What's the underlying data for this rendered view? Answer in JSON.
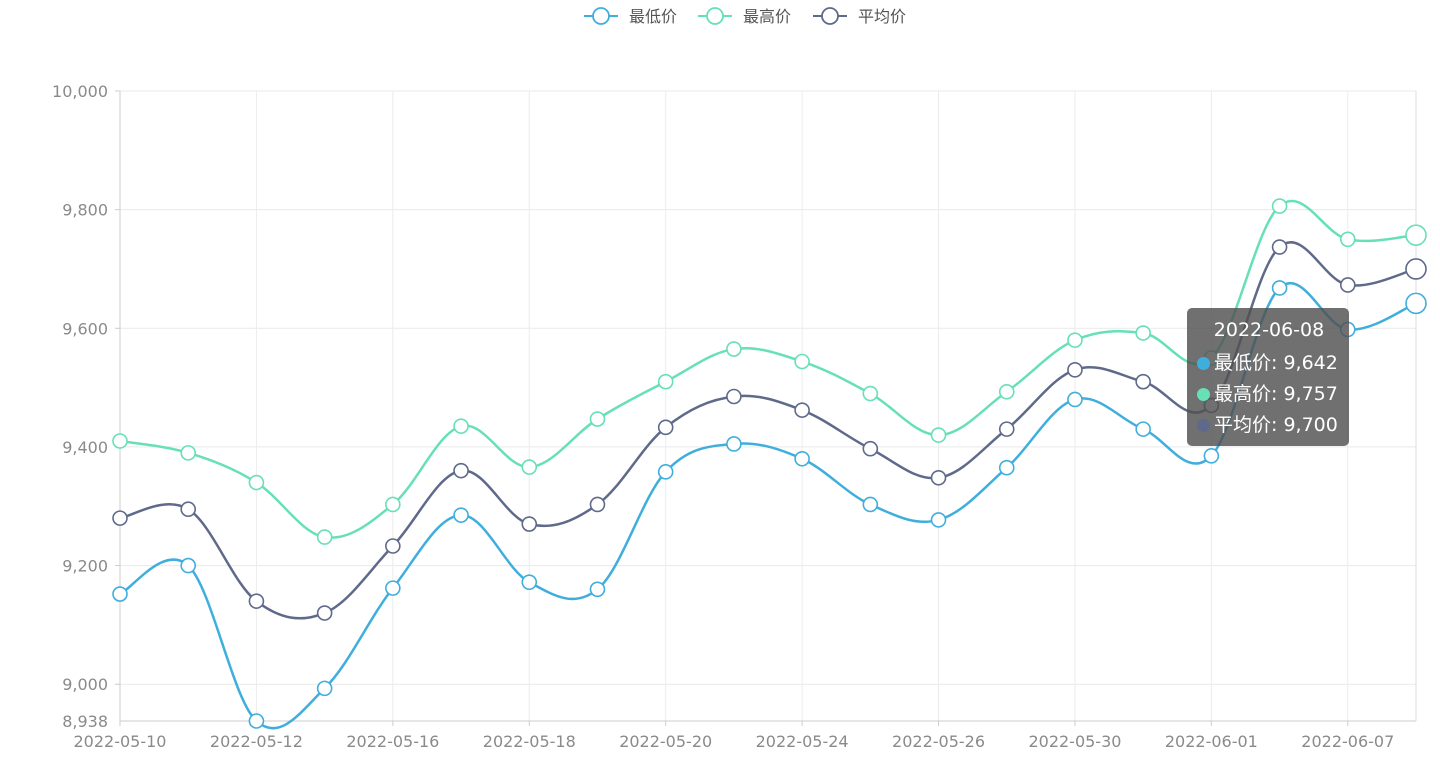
{
  "chart_data": {
    "type": "line",
    "smooth": true,
    "x": [
      "2022-05-10",
      "2022-05-11",
      "2022-05-12",
      "2022-05-13",
      "2022-05-16",
      "2022-05-17",
      "2022-05-18",
      "2022-05-19",
      "2022-05-20",
      "2022-05-23",
      "2022-05-24",
      "2022-05-25",
      "2022-05-26",
      "2022-05-27",
      "2022-05-30",
      "2022-05-31",
      "2022-06-01",
      "2022-06-02",
      "2022-06-07",
      "2022-06-08"
    ],
    "x_tick_labels": [
      "2022-05-10",
      "2022-05-12",
      "2022-05-16",
      "2022-05-18",
      "2022-05-20",
      "2022-05-24",
      "2022-05-26",
      "2022-05-30",
      "2022-06-01",
      "2022-06-07"
    ],
    "series": [
      {
        "name": "最低价",
        "color": "#40aedc",
        "values": [
          9152,
          9200,
          8938,
          8993,
          9162,
          9285,
          9172,
          9160,
          9358,
          9405,
          9380,
          9303,
          9277,
          9365,
          9480,
          9430,
          9385,
          9668,
          9598,
          9642
        ]
      },
      {
        "name": "最高价",
        "color": "#67e0b6",
        "values": [
          9410,
          9390,
          9340,
          9248,
          9303,
          9435,
          9366,
          9447,
          9510,
          9565,
          9544,
          9490,
          9420,
          9493,
          9580,
          9592,
          9550,
          9806,
          9750,
          9757
        ]
      },
      {
        "name": "平均价",
        "color": "#5f6a8a",
        "values": [
          9280,
          9295,
          9140,
          9120,
          9233,
          9360,
          9270,
          9303,
          9433,
          9485,
          9462,
          9397,
          9348,
          9430,
          9530,
          9510,
          9470,
          9737,
          9673,
          9700
        ]
      }
    ],
    "y_ticks": [
      10000,
      9800,
      9600,
      9400,
      9200,
      9000,
      8938
    ],
    "y_tick_labels": [
      "10,000",
      "9,800",
      "9,600",
      "9,400",
      "9,200",
      "9,000",
      "8,938"
    ],
    "ylim": [
      8938,
      10000
    ],
    "grid": true,
    "legend_position": "top-center"
  },
  "tooltip": {
    "title": "2022-06-08",
    "rows": [
      {
        "text": "最低价: 9,642",
        "color": "#40aedc"
      },
      {
        "text": "最高价: 9,757",
        "color": "#67e0b6"
      },
      {
        "text": "平均价: 9,700",
        "color": "#5f6a8a"
      }
    ]
  }
}
